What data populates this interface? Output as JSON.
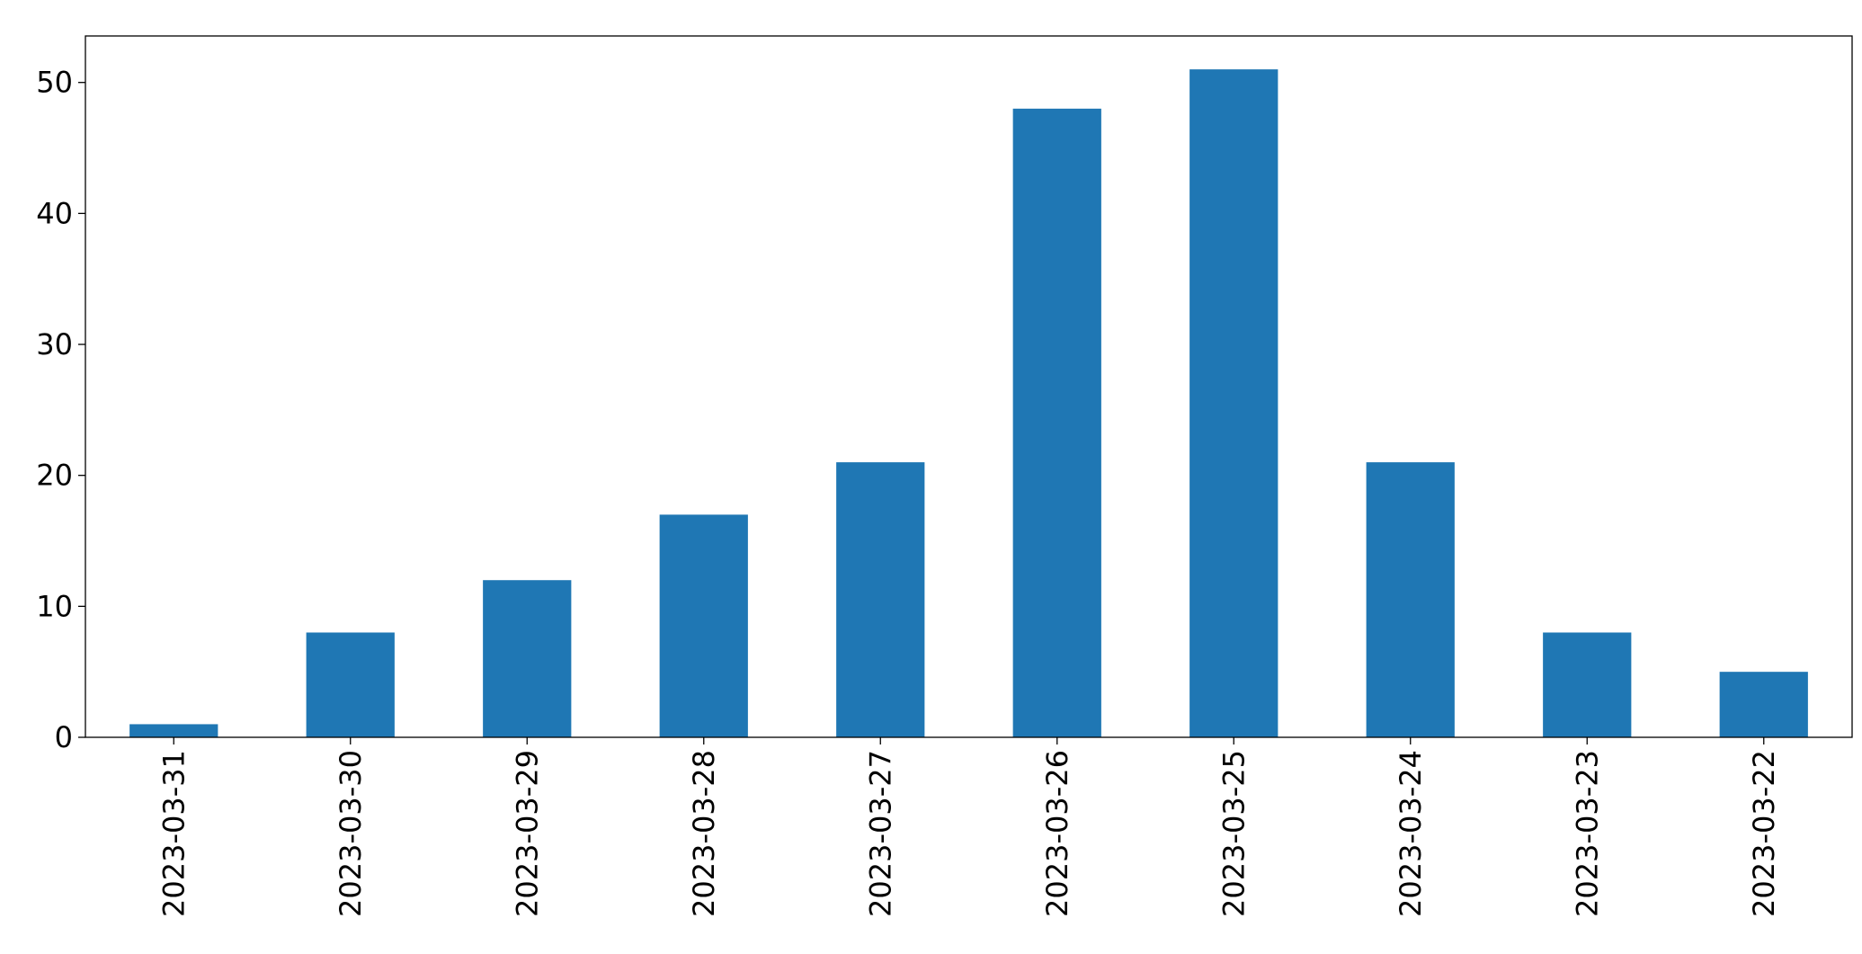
{
  "chart_data": {
    "type": "bar",
    "categories": [
      "2023-03-31",
      "2023-03-30",
      "2023-03-29",
      "2023-03-28",
      "2023-03-27",
      "2023-03-26",
      "2023-03-25",
      "2023-03-24",
      "2023-03-23",
      "2023-03-22"
    ],
    "values": [
      1,
      8,
      12,
      17,
      21,
      48,
      51,
      21,
      8,
      5
    ],
    "color": "#1f77b4",
    "ylim": [
      0,
      53.55
    ],
    "yticks": [
      0,
      10,
      20,
      30,
      40,
      50
    ],
    "grid": false
  }
}
